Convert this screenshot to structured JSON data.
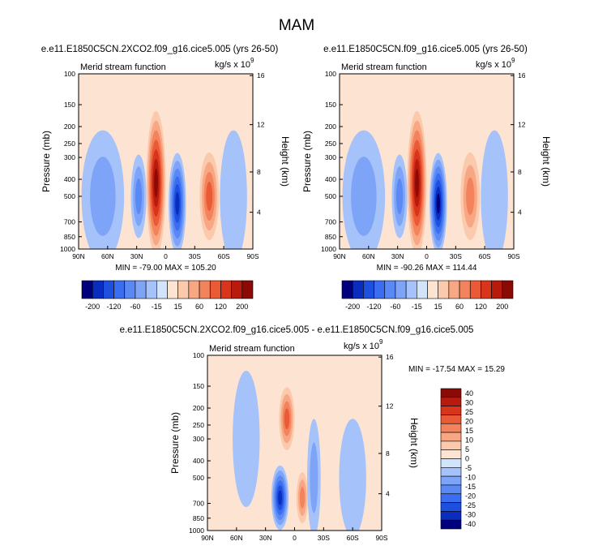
{
  "page": {
    "title": "MAM",
    "ctrl_label": "e.e11.E1850C5CN.2XCO2.f09_g16.cice5.005 (yrs 26-50)",
    "base_label": "e.e11.E1850C5CN.f09_g16.cice5.005 (yrs 26-50)",
    "diff_label": "e.e11.E1850C5CN.2XCO2.f09_g16.cice5.005 - e.e11.E1850C5CN.f09_g16.cice5.005"
  },
  "colors": {
    "neg": [
      "#00007f",
      "#0a2dbf",
      "#1e50df",
      "#3a6df0",
      "#5a88f5",
      "#7ea4f8",
      "#a6c2fa",
      "#d2e3fc"
    ],
    "pos": [
      "#fde4d2",
      "#fbc9ac",
      "#f7a784",
      "#f2835c",
      "#ea5a36",
      "#d9341c",
      "#b81a0e",
      "#8c0a05"
    ],
    "frame": "#000000"
  },
  "chart_data": [
    {
      "type": "contour",
      "left_title": "Merid stream function",
      "units": "kg/s x 10",
      "units_exp": "9",
      "ylabel": "Pressure (mb)",
      "ylabel_right": "Height (km)",
      "xticks": [
        "90N",
        "60N",
        "30N",
        "0",
        "30S",
        "60S",
        "90S"
      ],
      "yticks": [
        "100",
        "150",
        "200",
        "250",
        "300",
        "400",
        "500",
        "700",
        "850",
        "1000"
      ],
      "hticks": [
        "16",
        "12",
        "8",
        "4"
      ],
      "stats": "MIN = -79.00   MAX = 105.20",
      "levels": [
        "-200",
        "-120",
        "-60",
        "-15",
        "15",
        "60",
        "120",
        "200"
      ],
      "cells": [
        {
          "lat": 65,
          "p": 500,
          "w": 22,
          "h": 700,
          "v": -0.2
        },
        {
          "lat": 28,
          "p": 500,
          "w": 8,
          "h": 500,
          "v": -0.35
        },
        {
          "lat": 10,
          "p": 420,
          "w": 10,
          "h": 620,
          "v": 0.85
        },
        {
          "lat": -12,
          "p": 550,
          "w": 9,
          "h": 640,
          "v": -0.75
        },
        {
          "lat": -45,
          "p": 500,
          "w": 10,
          "h": 520,
          "v": 0.45
        },
        {
          "lat": -70,
          "p": 500,
          "w": 14,
          "h": 700,
          "v": -0.15
        }
      ]
    },
    {
      "type": "contour",
      "left_title": "Merid stream function",
      "units": "kg/s x 10",
      "units_exp": "9",
      "ylabel": "Pressure (mb)",
      "ylabel_right": "Height (km)",
      "xticks": [
        "90N",
        "60N",
        "30N",
        "0",
        "30S",
        "60S",
        "90S"
      ],
      "yticks": [
        "100",
        "150",
        "200",
        "250",
        "300",
        "400",
        "500",
        "700",
        "850",
        "1000"
      ],
      "hticks": [
        "16",
        "12",
        "8",
        "4"
      ],
      "stats": "MIN = -90.26   MAX = 114.44",
      "levels": [
        "-200",
        "-120",
        "-60",
        "-15",
        "15",
        "60",
        "120",
        "200"
      ],
      "cells": [
        {
          "lat": 65,
          "p": 500,
          "w": 22,
          "h": 700,
          "v": -0.2
        },
        {
          "lat": 28,
          "p": 500,
          "w": 8,
          "h": 500,
          "v": -0.4
        },
        {
          "lat": 10,
          "p": 420,
          "w": 10,
          "h": 620,
          "v": 0.9
        },
        {
          "lat": -12,
          "p": 550,
          "w": 9,
          "h": 640,
          "v": -0.82
        },
        {
          "lat": -45,
          "p": 500,
          "w": 10,
          "h": 520,
          "v": 0.42
        },
        {
          "lat": -70,
          "p": 500,
          "w": 14,
          "h": 700,
          "v": -0.15
        }
      ]
    },
    {
      "type": "contour",
      "left_title": "Merid stream function",
      "units": "kg/s x 10",
      "units_exp": "9",
      "ylabel": "Pressure (mb)",
      "ylabel_right": "Height (km)",
      "xticks": [
        "90N",
        "60N",
        "30N",
        "0",
        "30S",
        "60S",
        "90S"
      ],
      "yticks": [
        "100",
        "150",
        "200",
        "250",
        "300",
        "400",
        "500",
        "700",
        "850",
        "1000"
      ],
      "hticks": [
        "16",
        "12",
        "8",
        "4"
      ],
      "stats": "MIN = -17.54   MAX =  15.29",
      "levels": [
        "40",
        "30",
        "25",
        "20",
        "15",
        "10",
        "5",
        "0",
        "-5",
        "-10",
        "-15",
        "-20",
        "-25",
        "-30",
        "-40"
      ],
      "cells": [
        {
          "lat": 50,
          "p": 300,
          "w": 14,
          "h": 600,
          "v": -0.15
        },
        {
          "lat": 8,
          "p": 230,
          "w": 8,
          "h": 180,
          "v": 0.55
        },
        {
          "lat": 15,
          "p": 650,
          "w": 9,
          "h": 520,
          "v": -0.7
        },
        {
          "lat": -8,
          "p": 650,
          "w": 6,
          "h": 420,
          "v": 0.4
        },
        {
          "lat": -20,
          "p": 500,
          "w": 7,
          "h": 650,
          "v": -0.3
        },
        {
          "lat": -60,
          "p": 500,
          "w": 14,
          "h": 650,
          "v": -0.1
        }
      ]
    }
  ]
}
